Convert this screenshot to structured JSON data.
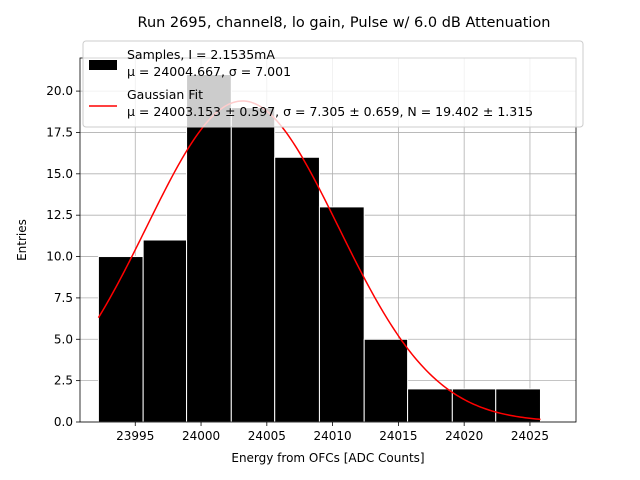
{
  "chart_data": {
    "type": "bar",
    "title": "Run 2695, channel8, lo gain, Pulse w/ 6.0 dB Attenuation",
    "xlabel": "Energy from OFCs [ADC Counts]",
    "ylabel": "Entries",
    "xlim": [
      23990.8,
      24028.5
    ],
    "ylim": [
      0,
      22
    ],
    "grid": true,
    "legend_placement": "top",
    "x_ticks": [
      23995,
      24000,
      24005,
      24010,
      24015,
      24020,
      24025
    ],
    "x_tick_labels": [
      "23995",
      "24000",
      "24005",
      "24010",
      "24015",
      "24020",
      "24025"
    ],
    "y_ticks": [
      0,
      2.5,
      5,
      7.5,
      10,
      12.5,
      15,
      17.5,
      20
    ],
    "y_tick_labels": [
      "0.0",
      "2.5",
      "5.0",
      "7.5",
      "10.0",
      "12.5",
      "15.0",
      "17.5",
      "20.0"
    ],
    "histogram": {
      "name": "Samples, I = 2.1535mA",
      "stats_line": "μ = 24004.667, σ = 7.001",
      "color": "#000000",
      "edge_color": "#ffffff",
      "bin_edges": [
        23992.2,
        23995.6,
        23998.9,
        24002.3,
        24005.6,
        24009.0,
        24012.4,
        24015.7,
        24019.1,
        24022.4,
        24025.8
      ],
      "counts": [
        10,
        11,
        21,
        19,
        16,
        13,
        5,
        2,
        2,
        2
      ]
    },
    "fit": {
      "name": "Gaussian Fit",
      "stats_line": "μ = 24003.153 ± 0.597, σ = 7.305 ± 0.659, N = 19.402 ± 1.315",
      "color": "#ff0000",
      "mu": 24003.153,
      "sigma": 7.305,
      "amplitude": 19.402,
      "x_range": [
        23992.2,
        24025.8
      ]
    }
  }
}
